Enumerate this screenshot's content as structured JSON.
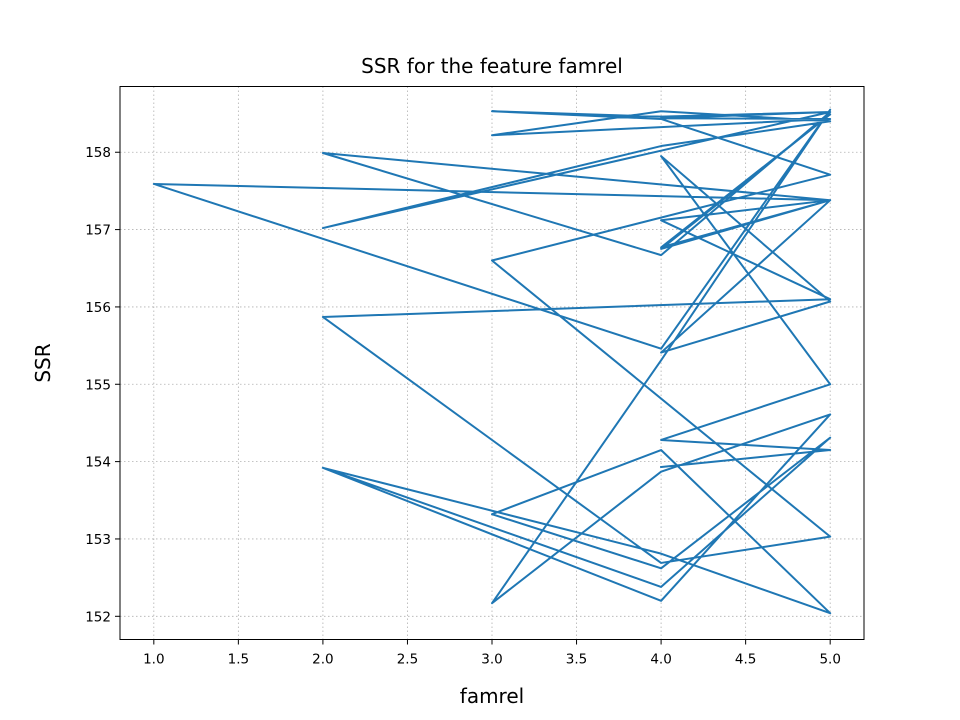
{
  "chart_data": {
    "type": "line",
    "title": "SSR for the feature famrel",
    "xlabel": "famrel",
    "ylabel": "SSR",
    "xlim": [
      0.8,
      5.2
    ],
    "ylim": [
      151.7,
      158.85
    ],
    "grid": true,
    "line_color": "#1f77b4",
    "x_ticks": [
      {
        "value": 1.0,
        "label": "1.0"
      },
      {
        "value": 1.5,
        "label": "1.5"
      },
      {
        "value": 2.0,
        "label": "2.0"
      },
      {
        "value": 2.5,
        "label": "2.5"
      },
      {
        "value": 3.0,
        "label": "3.0"
      },
      {
        "value": 3.5,
        "label": "3.5"
      },
      {
        "value": 4.0,
        "label": "4.0"
      },
      {
        "value": 4.5,
        "label": "4.5"
      },
      {
        "value": 5.0,
        "label": "5.0"
      }
    ],
    "y_ticks": [
      {
        "value": 152,
        "label": "152"
      },
      {
        "value": 153,
        "label": "153"
      },
      {
        "value": 154,
        "label": "154"
      },
      {
        "value": 155,
        "label": "155"
      },
      {
        "value": 156,
        "label": "156"
      },
      {
        "value": 157,
        "label": "157"
      },
      {
        "value": 158,
        "label": "158"
      }
    ],
    "series": [
      {
        "x": [
          2,
          4,
          5,
          4,
          3,
          4,
          5,
          4,
          2,
          4,
          5,
          4,
          3,
          4,
          5,
          4,
          1,
          5,
          2,
          4,
          5,
          4,
          5,
          3,
          4,
          5,
          4,
          2,
          5,
          4,
          3,
          4,
          5,
          3,
          5,
          4,
          2,
          5,
          4,
          5,
          4,
          5,
          4,
          5,
          4,
          5,
          4,
          5,
          4,
          5,
          4
        ],
        "y": [
          153.92,
          152.38,
          154.31,
          152.62,
          153.32,
          154.15,
          152.04,
          152.81,
          153.92,
          152.2,
          154.61,
          153.87,
          152.17,
          155.31,
          158.55,
          155.46,
          157.59,
          157.38,
          157.99,
          156.67,
          158.52,
          158.44,
          158.43,
          158.22,
          158.53,
          158.4,
          158.08,
          157.02,
          158.52,
          158.46,
          158.53,
          158.43,
          157.71,
          156.6,
          153.03,
          152.69,
          155.87,
          156.1,
          157.12,
          157.38,
          156.77,
          158.49,
          156.75,
          157.38,
          155.41,
          156.07,
          157.95,
          155.0,
          154.28,
          154.15,
          153.93
        ]
      }
    ]
  }
}
